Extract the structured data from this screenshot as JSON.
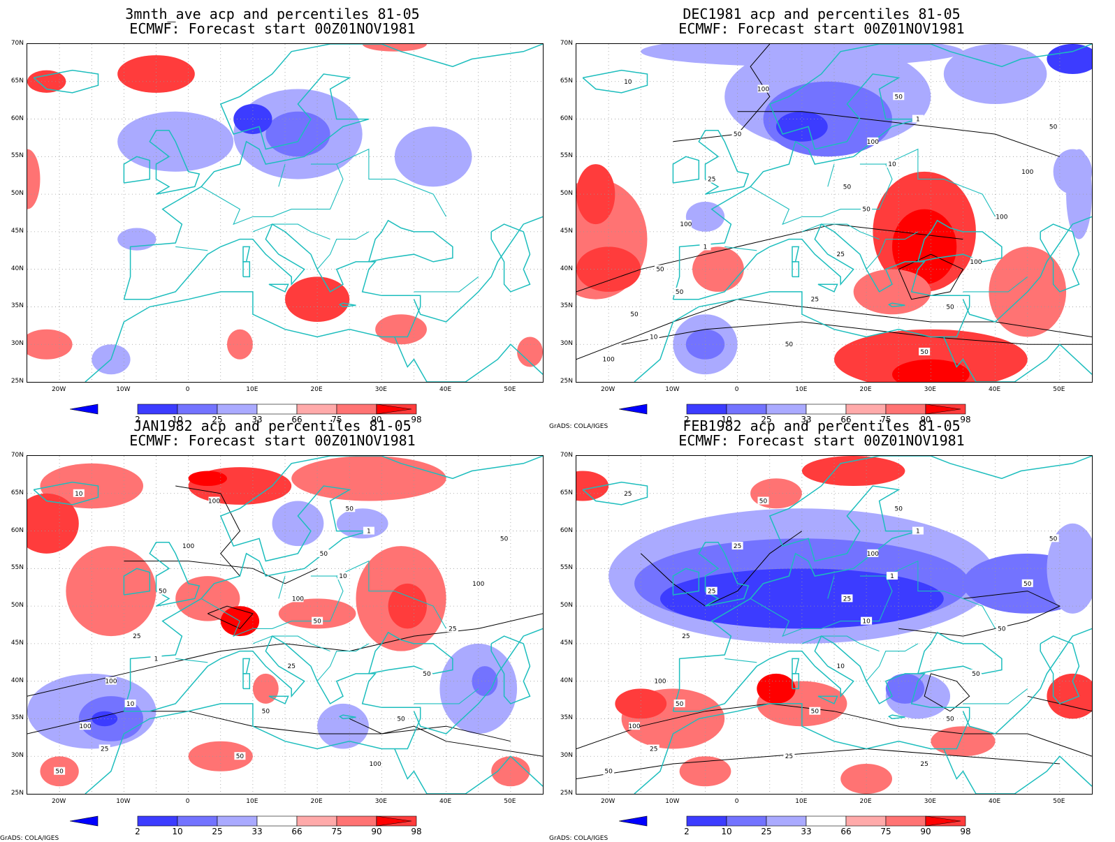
{
  "colorbar": {
    "labels": [
      "2",
      "10",
      "25",
      "33",
      "66",
      "75",
      "90",
      "98"
    ],
    "colors": [
      "#0000ff",
      "#3c3cff",
      "#7373ff",
      "#aaaaff",
      "#ffffff",
      "#ffaaaa",
      "#ff7373",
      "#ff3c3c",
      "#ff0000"
    ]
  },
  "axes": {
    "lat_labels": [
      "70N",
      "65N",
      "60N",
      "55N",
      "50N",
      "45N",
      "40N",
      "35N",
      "30N",
      "25N"
    ],
    "lon_labels": [
      "20W",
      "10W",
      "0",
      "10E",
      "20E",
      "30E",
      "40E",
      "50E"
    ]
  },
  "credit": "GrADS: COLA/IGES",
  "coastline_color": "#1cbdbd",
  "panels": [
    {
      "title1": "3mnth_ave acp and percentiles 81-05",
      "title2": "ECMWF: Forecast start 00Z01NOV1981",
      "show_credit": false,
      "contour_labels": []
    },
    {
      "title1": "DEC1981 acp and percentiles 81-05",
      "title2": "ECMWF: Forecast start 00Z01NOV1981",
      "show_credit": true,
      "contour_labels": [
        "100",
        "50",
        "50",
        "100",
        "50",
        "50",
        "100",
        "50",
        "25",
        "50",
        "50",
        "100",
        "100",
        "100",
        "50",
        "100",
        "25",
        "50",
        "25",
        "10",
        "50",
        "10",
        "10",
        "50",
        "1",
        "1"
      ]
    },
    {
      "title1": "JAN1982 acp and percentiles 81-05",
      "title2": "ECMWF: Forecast start 00Z01NOV1981",
      "show_credit": true,
      "contour_labels": [
        "50",
        "100",
        "100",
        "50",
        "100",
        "50",
        "25",
        "100",
        "50",
        "50",
        "100",
        "50",
        "100",
        "25",
        "50",
        "100",
        "50",
        "50",
        "25",
        "10",
        "50",
        "25",
        "10",
        "10",
        "1",
        "1"
      ]
    },
    {
      "title1": "FEB1982 acp and percentiles 81-05",
      "title2": "ECMWF: Forecast start 00Z01NOV1981",
      "show_credit": true,
      "contour_labels": [
        "50",
        "25",
        "100",
        "100",
        "100",
        "50",
        "25",
        "25",
        "25",
        "50",
        "25",
        "50",
        "50",
        "50",
        "25",
        "50",
        "50",
        "50",
        "10",
        "25",
        "10",
        "25",
        "1",
        "50",
        "1"
      ]
    }
  ]
}
